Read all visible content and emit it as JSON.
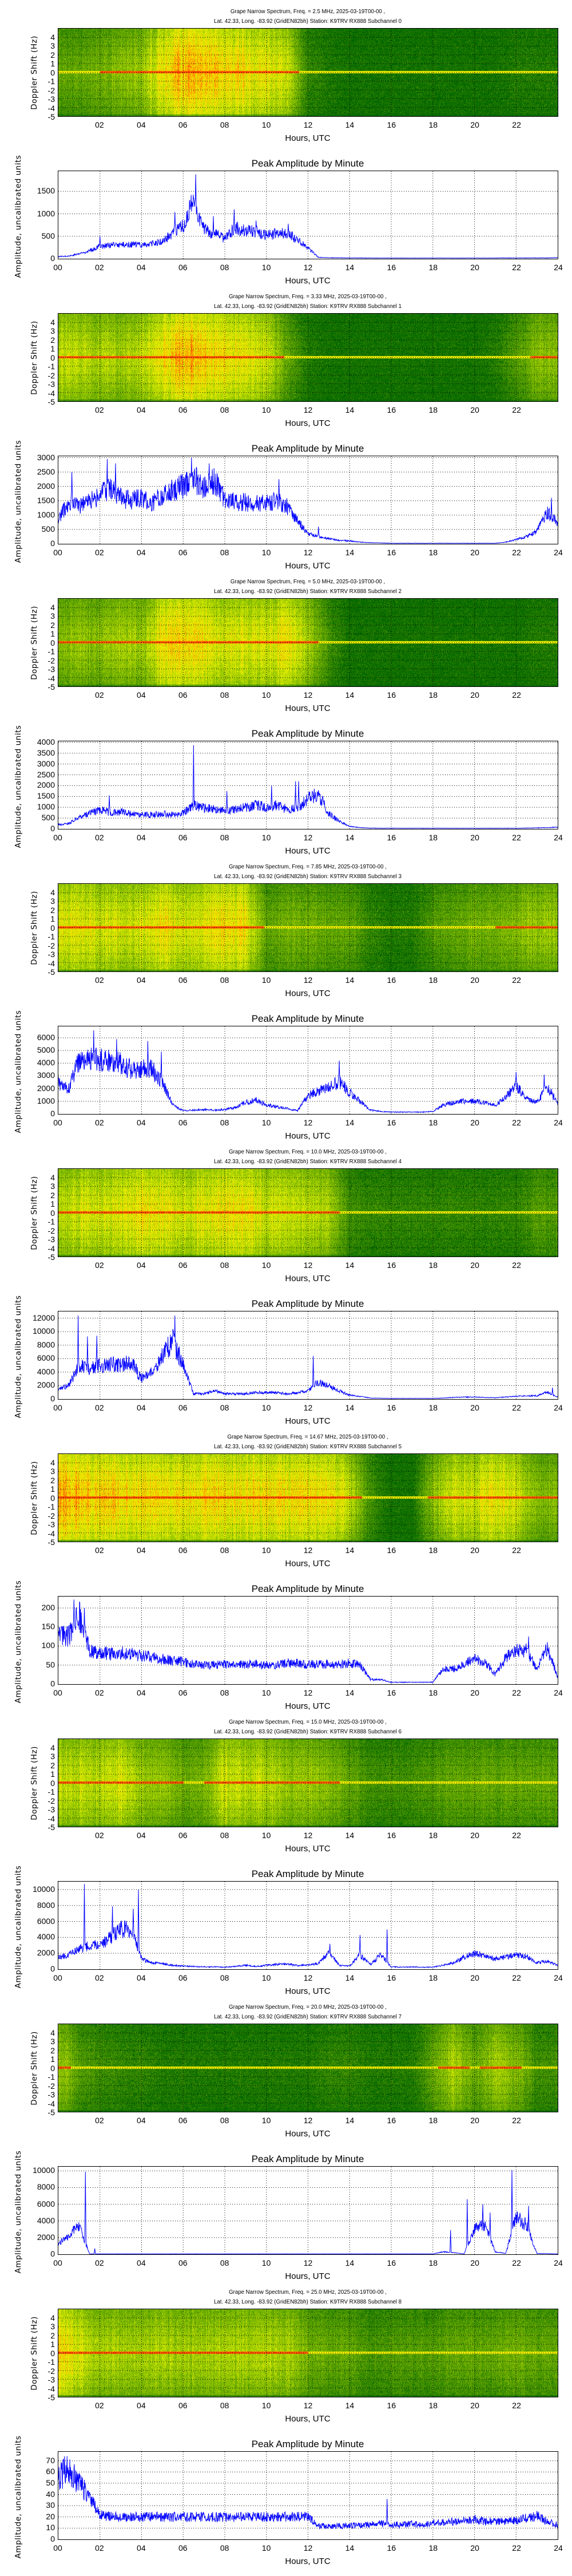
{
  "axes": {
    "spec_ylabel": "Doppler Shift (Hz)",
    "xlabel": "Hours, UTC",
    "amp_title": "Peak Amplitude by Minute",
    "amp_ylabel": "Amplitude, uncalibrated units",
    "spec_xticks": [
      "02",
      "04",
      "06",
      "08",
      "10",
      "12",
      "14",
      "16",
      "18",
      "20",
      "22"
    ],
    "spec_yticks": [
      "-5",
      "-4",
      "-3",
      "-2",
      "-1",
      "0",
      "1",
      "2",
      "3",
      "4"
    ],
    "amp_xticks": [
      "00",
      "02",
      "04",
      "06",
      "08",
      "10",
      "12",
      "14",
      "16",
      "18",
      "20",
      "22",
      "24"
    ],
    "spec_ylim": [
      -5,
      5
    ],
    "xlim": [
      0,
      24
    ]
  },
  "chart_data": [
    {
      "type": "line",
      "title_line1": "Grape Narrow Spectrum, Freq. = 2.5 MHz, 2025-03-19T00-00 ,",
      "title_line2": "Lat.  42.33, Long. -83.92 (GridEN82bh) Station: K9TRV RX888 Subchannel 0",
      "activity": [
        0.3,
        0.3,
        0.35,
        0.4,
        0.45,
        0.7,
        0.85,
        0.8,
        0.75,
        0.7,
        0.65,
        0.6,
        0.15,
        0.1,
        0.05,
        0.05,
        0.05,
        0.05,
        0.05,
        0.05,
        0.05,
        0.05,
        0.1,
        0.1
      ],
      "ylim": [
        0,
        1950
      ],
      "yticks": [
        "0",
        "500",
        "1000",
        "1500"
      ],
      "values": [
        50,
        60,
        110,
        180,
        280,
        300,
        310,
        320,
        310,
        330,
        380,
        560,
        720,
        1300,
        650,
        560,
        450,
        700,
        620,
        600,
        520,
        560,
        560,
        420,
        250,
        30,
        22,
        20,
        18,
        18,
        16,
        15,
        15,
        15,
        15,
        15,
        15,
        15,
        15,
        15,
        15,
        15,
        16,
        18,
        18,
        18,
        18,
        18,
        25
      ],
      "peaks": [
        [
          2.0,
          500
        ],
        [
          5.6,
          1040
        ],
        [
          6.6,
          1880
        ],
        [
          7.45,
          950
        ],
        [
          8.45,
          1100
        ],
        [
          9.5,
          850
        ],
        [
          11.05,
          780
        ]
      ]
    },
    {
      "type": "line",
      "title_line1": "Grape Narrow Spectrum, Freq. = 3.33 MHz, 2025-03-19T00-00 ,",
      "title_line2": "Lat.  42.33, Long. -83.92 (GridEN82bh) Station: K9TRV RX888 Subchannel 1",
      "activity": [
        0.55,
        0.55,
        0.5,
        0.5,
        0.55,
        0.7,
        0.8,
        0.75,
        0.7,
        0.65,
        0.6,
        0.3,
        0.1,
        0.05,
        0.05,
        0.05,
        0.05,
        0.05,
        0.05,
        0.05,
        0.05,
        0.1,
        0.25,
        0.4
      ],
      "ylim": [
        0,
        3050
      ],
      "yticks": [
        "0",
        "500",
        "1000",
        "1500",
        "2000",
        "2500",
        "3000"
      ],
      "values": [
        900,
        1400,
        1300,
        1500,
        1700,
        1900,
        1600,
        1500,
        1600,
        1400,
        1700,
        1900,
        2000,
        2300,
        1900,
        2200,
        1500,
        1450,
        1450,
        1400,
        1400,
        1500,
        1300,
        800,
        350,
        250,
        180,
        120,
        100,
        60,
        40,
        30,
        20,
        20,
        20,
        20,
        20,
        20,
        20,
        20,
        20,
        20,
        20,
        60,
        150,
        250,
        450,
        1100,
        700
      ],
      "peaks": [
        [
          0.65,
          2500
        ],
        [
          2.35,
          2950
        ],
        [
          2.75,
          2800
        ],
        [
          6.4,
          3000
        ],
        [
          7.25,
          2800
        ],
        [
          10.6,
          2250
        ],
        [
          12.5,
          600
        ],
        [
          23.7,
          1600
        ]
      ]
    },
    {
      "type": "line",
      "title_line1": "Grape Narrow Spectrum, Freq. = 5.0 MHz, 2025-03-19T00-00 ,",
      "title_line2": "Lat.  42.33, Long. -83.92 (GridEN82bh) Station: K9TRV RX888 Subchannel 2",
      "activity": [
        0.4,
        0.45,
        0.4,
        0.5,
        0.45,
        0.7,
        0.75,
        0.7,
        0.6,
        0.65,
        0.6,
        0.7,
        0.5,
        0.2,
        0.05,
        0.05,
        0.05,
        0.05,
        0.05,
        0.05,
        0.05,
        0.05,
        0.05,
        0.1
      ],
      "ylim": [
        0,
        4050
      ],
      "yticks": [
        "0",
        "500",
        "1000",
        "1500",
        "2000",
        "2500",
        "3000",
        "3500",
        "4000"
      ],
      "values": [
        200,
        250,
        550,
        700,
        900,
        750,
        800,
        700,
        650,
        650,
        700,
        650,
        750,
        1100,
        950,
        950,
        800,
        900,
        1000,
        1100,
        1000,
        1100,
        900,
        950,
        1400,
        1600,
        700,
        350,
        120,
        60,
        40,
        30,
        30,
        30,
        30,
        30,
        30,
        30,
        30,
        30,
        30,
        30,
        30,
        30,
        30,
        40,
        50,
        60,
        80
      ],
      "peaks": [
        [
          2.45,
          1550
        ],
        [
          6.5,
          3870
        ],
        [
          8.1,
          1750
        ],
        [
          10.25,
          2000
        ],
        [
          11.4,
          2200
        ],
        [
          11.55,
          2200
        ],
        [
          12.2,
          1750
        ]
      ]
    },
    {
      "type": "line",
      "title_line1": "Grape Narrow Spectrum, Freq. = 7.85 MHz, 2025-03-19T00-00 ,",
      "title_line2": "Lat.  42.33, Long. -83.92 (GridEN82bh) Station: K9TRV RX888 Subchannel 3",
      "activity": [
        0.6,
        0.65,
        0.6,
        0.6,
        0.6,
        0.7,
        0.6,
        0.65,
        0.7,
        0.7,
        0.3,
        0.35,
        0.35,
        0.3,
        0.3,
        0.15,
        0.1,
        0.1,
        0.25,
        0.3,
        0.35,
        0.35,
        0.4,
        0.45
      ],
      "ylim": [
        0,
        6900
      ],
      "yticks": [
        "0",
        "1000",
        "2000",
        "3000",
        "4000",
        "5000",
        "6000"
      ],
      "values": [
        2400,
        2000,
        4200,
        4300,
        4300,
        4200,
        4000,
        3500,
        3600,
        3500,
        2500,
        700,
        250,
        300,
        350,
        300,
        350,
        500,
        900,
        1100,
        700,
        550,
        450,
        250,
        1500,
        1800,
        2200,
        2500,
        1700,
        1000,
        300,
        200,
        150,
        150,
        150,
        150,
        200,
        700,
        900,
        1000,
        1000,
        900,
        700,
        1300,
        2200,
        1200,
        900,
        2200,
        800
      ],
      "peaks": [
        [
          1.7,
          6600
        ],
        [
          2.8,
          5900
        ],
        [
          4.3,
          5750
        ],
        [
          4.95,
          4900
        ],
        [
          13.5,
          4200
        ],
        [
          22.0,
          3300
        ],
        [
          23.35,
          3100
        ]
      ]
    },
    {
      "type": "line",
      "title_line1": "Grape Narrow Spectrum, Freq. = 10.0 MHz, 2025-03-19T00-00 ,",
      "title_line2": "Lat.  42.33, Long. -83.92 (GridEN82bh) Station: K9TRV RX888 Subchannel 4",
      "activity": [
        0.55,
        0.6,
        0.6,
        0.65,
        0.7,
        0.7,
        0.6,
        0.65,
        0.7,
        0.7,
        0.6,
        0.6,
        0.55,
        0.5,
        0.2,
        0.15,
        0.15,
        0.15,
        0.15,
        0.15,
        0.15,
        0.15,
        0.15,
        0.25
      ],
      "ylim": [
        0,
        13000
      ],
      "yticks": [
        "0",
        "2000",
        "4000",
        "6000",
        "8000",
        "10000",
        "12000"
      ],
      "values": [
        1500,
        2000,
        5000,
        4500,
        5000,
        5200,
        5000,
        5500,
        3000,
        4000,
        6500,
        8500,
        5000,
        800,
        800,
        1200,
        800,
        750,
        800,
        1000,
        950,
        950,
        800,
        900,
        1200,
        2500,
        2000,
        1200,
        600,
        400,
        150,
        120,
        100,
        100,
        100,
        100,
        100,
        150,
        250,
        300,
        300,
        250,
        200,
        300,
        400,
        450,
        500,
        1000,
        300
      ],
      "peaks": [
        [
          0.95,
          12400
        ],
        [
          1.4,
          9300
        ],
        [
          1.85,
          9400
        ],
        [
          5.6,
          12400
        ],
        [
          12.25,
          6400
        ],
        [
          23.75,
          1700
        ]
      ]
    },
    {
      "type": "line",
      "title_line1": "Grape Narrow Spectrum, Freq. = 14.67 MHz, 2025-03-19T00-00 ,",
      "title_line2": "Lat.  42.33, Long. -83.92 (GridEN82bh) Station: K9TRV RX888 Subchannel 5",
      "activity": [
        0.85,
        0.8,
        0.75,
        0.75,
        0.72,
        0.72,
        0.72,
        0.72,
        0.72,
        0.72,
        0.72,
        0.72,
        0.72,
        0.72,
        0.55,
        0.2,
        0.05,
        0.05,
        0.45,
        0.6,
        0.6,
        0.7,
        0.6,
        0.4
      ],
      "ylim": [
        0,
        230
      ],
      "yticks": [
        "0",
        "50",
        "100",
        "150",
        "200"
      ],
      "values": [
        130,
        125,
        180,
        90,
        82,
        80,
        82,
        80,
        75,
        70,
        65,
        62,
        58,
        52,
        50,
        50,
        52,
        50,
        52,
        52,
        50,
        52,
        55,
        55,
        52,
        52,
        52,
        52,
        55,
        50,
        12,
        12,
        5,
        5,
        5,
        5,
        5,
        40,
        40,
        55,
        65,
        60,
        25,
        70,
        90,
        90,
        40,
        95,
        20
      ],
      "peaks": [
        [
          0.75,
          222
        ],
        [
          1.25,
          200
        ],
        [
          22.6,
          125
        ]
      ]
    },
    {
      "type": "line",
      "title_line1": "Grape Narrow Spectrum, Freq. = 15.0 MHz, 2025-03-19T00-00 ,",
      "title_line2": "Lat.  42.33, Long. -83.92 (GridEN82bh) Station: K9TRV RX888 Subchannel 6",
      "activity": [
        0.55,
        0.55,
        0.55,
        0.6,
        0.45,
        0.45,
        0.35,
        0.35,
        0.6,
        0.55,
        0.55,
        0.45,
        0.45,
        0.4,
        0.3,
        0.2,
        0.2,
        0.2,
        0.25,
        0.3,
        0.3,
        0.3,
        0.3,
        0.3
      ],
      "ylim": [
        0,
        11000
      ],
      "yticks": [
        "0",
        "2000",
        "4000",
        "6000",
        "8000",
        "10000"
      ],
      "values": [
        1500,
        1800,
        2500,
        3000,
        3000,
        4000,
        5000,
        5000,
        1300,
        800,
        700,
        500,
        400,
        350,
        300,
        300,
        250,
        350,
        500,
        350,
        500,
        600,
        650,
        450,
        550,
        700,
        2200,
        500,
        400,
        1800,
        600,
        1800,
        300,
        250,
        300,
        250,
        250,
        500,
        800,
        1500,
        2000,
        1700,
        1300,
        1500,
        1800,
        1600,
        800,
        1000,
        500
      ],
      "peaks": [
        [
          1.25,
          10700
        ],
        [
          2.6,
          7900
        ],
        [
          3.6,
          7600
        ],
        [
          3.85,
          10000
        ],
        [
          13.05,
          3200
        ],
        [
          14.5,
          4300
        ],
        [
          15.8,
          5000
        ]
      ]
    },
    {
      "type": "line",
      "title_line1": "Grape Narrow Spectrum, Freq. = 20.0 MHz, 2025-03-19T00-00 ,",
      "title_line2": "Lat.  42.33, Long. -83.92 (GridEN82bh) Station: K9TRV RX888 Subchannel 7",
      "activity": [
        0.5,
        0.25,
        0.2,
        0.15,
        0.15,
        0.1,
        0.1,
        0.1,
        0.1,
        0.1,
        0.1,
        0.1,
        0.1,
        0.15,
        0.15,
        0.1,
        0.1,
        0.1,
        0.3,
        0.5,
        0.3,
        0.5,
        0.4,
        0.2
      ],
      "ylim": [
        0,
        10500
      ],
      "yticks": [
        "0",
        "2000",
        "4000",
        "6000",
        "8000",
        "10000"
      ],
      "values": [
        1200,
        2300,
        3500,
        50,
        50,
        50,
        50,
        50,
        50,
        50,
        50,
        50,
        50,
        50,
        50,
        50,
        50,
        50,
        50,
        50,
        50,
        50,
        50,
        50,
        50,
        50,
        50,
        50,
        50,
        50,
        50,
        50,
        50,
        50,
        50,
        50,
        50,
        300,
        200,
        50,
        3000,
        3500,
        300,
        100,
        4500,
        3500,
        100,
        80,
        50
      ],
      "peaks": [
        [
          1.3,
          9900
        ],
        [
          1.75,
          700
        ],
        [
          18.85,
          2900
        ],
        [
          19.65,
          6600
        ],
        [
          20.4,
          6000
        ],
        [
          20.75,
          5000
        ],
        [
          21.8,
          10100
        ],
        [
          22.6,
          5800
        ]
      ]
    },
    {
      "type": "line",
      "title_line1": "Grape Narrow Spectrum, Freq. = 25.0 MHz, 2025-03-19T00-00 ,",
      "title_line2": "Lat.  42.33, Long. -83.92 (GridEN82bh) Station: K9TRV RX888 Subchannel 8",
      "activity": [
        0.75,
        0.6,
        0.5,
        0.5,
        0.5,
        0.5,
        0.5,
        0.5,
        0.5,
        0.5,
        0.5,
        0.5,
        0.35,
        0.3,
        0.3,
        0.2,
        0.25,
        0.25,
        0.25,
        0.3,
        0.3,
        0.3,
        0.35,
        0.3
      ],
      "ylim": [
        0,
        78
      ],
      "yticks": [
        "0",
        "10",
        "20",
        "30",
        "40",
        "50",
        "60",
        "70"
      ],
      "values": [
        55,
        62,
        50,
        38,
        22,
        20,
        20,
        20,
        20,
        20,
        20,
        20,
        20,
        20,
        20,
        20,
        20,
        20,
        20,
        20,
        20,
        20,
        20,
        20,
        20,
        12,
        12,
        12,
        12,
        13,
        13,
        14,
        13,
        13,
        14,
        12,
        15,
        15,
        16,
        17,
        18,
        16,
        16,
        16,
        17,
        19,
        21,
        16,
        13
      ],
      "peaks": [
        [
          0.3,
          74
        ],
        [
          15.8,
          36
        ]
      ]
    }
  ]
}
